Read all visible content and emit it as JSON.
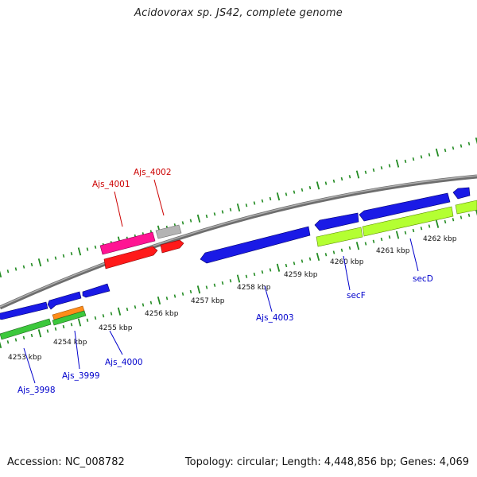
{
  "title": "Acidovorax sp. JS42, complete genome",
  "footer": {
    "accession": "Accession: NC_008782",
    "summary": "Topology: circular; Length: 4,448,856 bp; Genes: 4,069"
  },
  "colors": {
    "backbone": "#8a8a8a",
    "tick": "#228b22",
    "cds_forward": "#1a1ae6",
    "cds_reverse": "#1a1ae6",
    "rna_forward": "#ff1493",
    "rna_reverse": "#ff1a1a",
    "gray_feature": "#b4b4b4",
    "gene_forward": "#b4ff32",
    "gene_reverse": "#3cc83c",
    "orange_feature": "#ff8c1a",
    "label_forward": "#cc0000",
    "label_reverse": "#0000cc"
  },
  "ticks": {
    "labels": [
      "4253 kbp",
      "4254 kbp",
      "4255 kbp",
      "4256 kbp",
      "4257 kbp",
      "4258 kbp",
      "4259 kbp",
      "4260 kbp",
      "4261 kbp",
      "4262 kbp"
    ]
  },
  "features": [
    {
      "label": "Ajs_3998",
      "strand": "reverse",
      "kind": "cds",
      "start": 0.0,
      "end": 0.09
    },
    {
      "label": "",
      "strand": "reverse",
      "kind": "gene",
      "start": 0.0,
      "end": 0.09
    },
    {
      "label": "Ajs_3999",
      "strand": "reverse",
      "kind": "cds",
      "start": 0.11,
      "end": 0.17
    },
    {
      "label": "",
      "strand": "reverse",
      "kind": "orange",
      "start": 0.11,
      "end": 0.17
    },
    {
      "label": "",
      "strand": "reverse",
      "kind": "gene",
      "start": 0.11,
      "end": 0.17
    },
    {
      "label": "Ajs_4000",
      "strand": "reverse",
      "kind": "cds",
      "start": 0.18,
      "end": 0.23
    },
    {
      "label": "Ajs_4001",
      "strand": "forward",
      "kind": "rna",
      "start": 0.21,
      "end": 0.33
    },
    {
      "label": "",
      "strand": "forward",
      "kind": "rna2",
      "start": 0.21,
      "end": 0.33
    },
    {
      "label": "Ajs_4002",
      "strand": "forward",
      "kind": "gray",
      "start": 0.34,
      "end": 0.39
    },
    {
      "label": "",
      "strand": "forward",
      "kind": "rna2",
      "start": 0.34,
      "end": 0.39
    },
    {
      "label": "Ajs_4003",
      "strand": "reverse",
      "kind": "cds",
      "start": 0.42,
      "end": 0.66
    },
    {
      "label": "secF",
      "strand": "reverse",
      "kind": "cds",
      "start": 0.67,
      "end": 0.77
    },
    {
      "label": "",
      "strand": "reverse",
      "kind": "gene",
      "start": 0.67,
      "end": 0.77
    },
    {
      "label": "secD",
      "strand": "reverse",
      "kind": "cds",
      "start": 0.77,
      "end": 0.96
    },
    {
      "label": "",
      "strand": "reverse",
      "kind": "gene",
      "start": 0.77,
      "end": 0.96
    },
    {
      "label": "",
      "strand": "reverse",
      "kind": "cds",
      "start": 0.97,
      "end": 1.0
    },
    {
      "label": "",
      "strand": "reverse",
      "kind": "gene",
      "start": 0.97,
      "end": 1.0
    }
  ]
}
